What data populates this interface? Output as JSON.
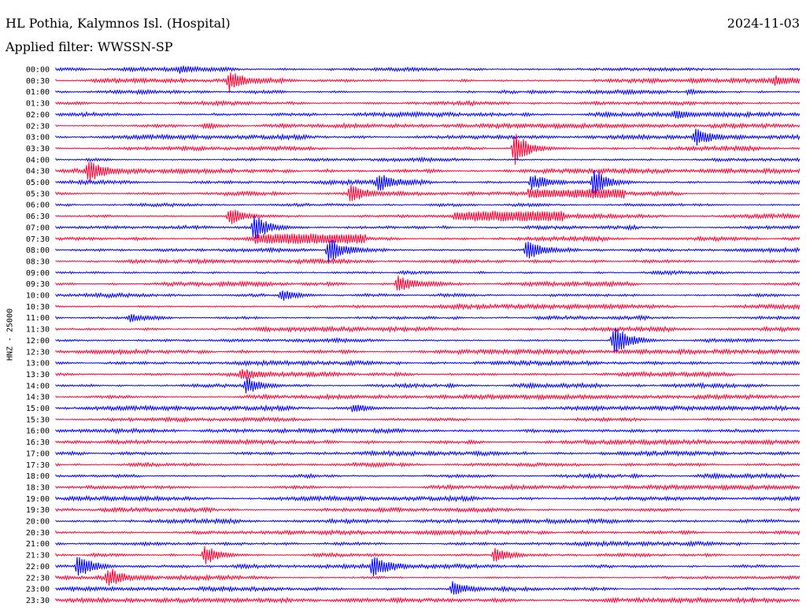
{
  "header": {
    "station": "HL Pothia, Kalymnos Isl. (Hospital)",
    "date": "2024-11-03",
    "filter_label": "Applied filter: WWSSN-SP"
  },
  "chart_data": {
    "type": "line",
    "title": "HL Pothia, Kalymnos Isl. (Hospital)",
    "ylabel": "HNZ - 25000",
    "series_colors": [
      "#0000ff",
      "#ff0033"
    ],
    "rows": [
      "00:00",
      "00:30",
      "01:00",
      "01:30",
      "02:00",
      "02:30",
      "03:00",
      "03:30",
      "04:00",
      "04:30",
      "05:00",
      "05:30",
      "06:00",
      "06:30",
      "07:00",
      "07:30",
      "08:00",
      "08:30",
      "09:00",
      "09:30",
      "10:00",
      "10:30",
      "11:00",
      "11:30",
      "12:00",
      "12:30",
      "13:00",
      "13:30",
      "14:00",
      "14:30",
      "15:00",
      "15:30",
      "16:00",
      "16:30",
      "17:00",
      "17:30",
      "18:00",
      "18:30",
      "19:00",
      "19:30",
      "20:00",
      "20:30",
      "21:00",
      "21:30",
      "22:00",
      "22:30",
      "23:00",
      "23:30"
    ],
    "trace_window_minutes": 30,
    "events": [
      {
        "row": "00:00",
        "minute": 5.0,
        "amp": 0.4
      },
      {
        "row": "00:30",
        "minute": 7.0,
        "amp": 1.4
      },
      {
        "row": "00:30",
        "minute": 29.0,
        "amp": 0.5
      },
      {
        "row": "01:00",
        "minute": 25.5,
        "amp": 0.4
      },
      {
        "row": "02:00",
        "minute": 25.0,
        "amp": 0.6
      },
      {
        "row": "02:30",
        "minute": 6.0,
        "amp": 0.4
      },
      {
        "row": "03:00",
        "minute": 25.8,
        "amp": 1.2
      },
      {
        "row": "03:30",
        "minute": 18.5,
        "amp": 2.5
      },
      {
        "row": "04:30",
        "minute": 1.3,
        "amp": 1.5
      },
      {
        "row": "05:00",
        "minute": 13.0,
        "amp": 1.3
      },
      {
        "row": "05:00",
        "minute": 19.2,
        "amp": 1.1
      },
      {
        "row": "05:00",
        "minute": 21.7,
        "amp": 2.0
      },
      {
        "row": "05:30",
        "minute": 11.9,
        "amp": 1.4
      },
      {
        "row": "06:30",
        "minute": 7.0,
        "amp": 1.3
      },
      {
        "row": "07:00",
        "minute": 8.0,
        "amp": 2.0
      },
      {
        "row": "08:00",
        "minute": 11.0,
        "amp": 2.1
      },
      {
        "row": "08:00",
        "minute": 19.0,
        "amp": 1.4
      },
      {
        "row": "09:30",
        "minute": 13.8,
        "amp": 1.2
      },
      {
        "row": "10:00",
        "minute": 9.1,
        "amp": 0.8
      },
      {
        "row": "11:00",
        "minute": 3.0,
        "amp": 0.6
      },
      {
        "row": "12:00",
        "minute": 22.5,
        "amp": 2.2
      },
      {
        "row": "13:30",
        "minute": 7.5,
        "amp": 0.6
      },
      {
        "row": "14:00",
        "minute": 7.7,
        "amp": 1.3
      },
      {
        "row": "15:00",
        "minute": 12.0,
        "amp": 0.6
      },
      {
        "row": "21:30",
        "minute": 6.0,
        "amp": 1.5
      },
      {
        "row": "21:30",
        "minute": 17.7,
        "amp": 1.1
      },
      {
        "row": "22:00",
        "minute": 0.9,
        "amp": 1.7
      },
      {
        "row": "22:00",
        "minute": 12.8,
        "amp": 1.6
      },
      {
        "row": "22:30",
        "minute": 2.1,
        "amp": 1.3
      },
      {
        "row": "23:00",
        "minute": 16.0,
        "amp": 1.0
      }
    ],
    "tremors": [
      {
        "row": "05:30",
        "start_minute": 19.0,
        "end_minute": 23.0,
        "amp": 0.6
      },
      {
        "row": "06:30",
        "start_minute": 16.0,
        "end_minute": 20.5,
        "amp": 0.6
      },
      {
        "row": "07:30",
        "start_minute": 8.0,
        "end_minute": 12.5,
        "amp": 0.6
      }
    ]
  }
}
